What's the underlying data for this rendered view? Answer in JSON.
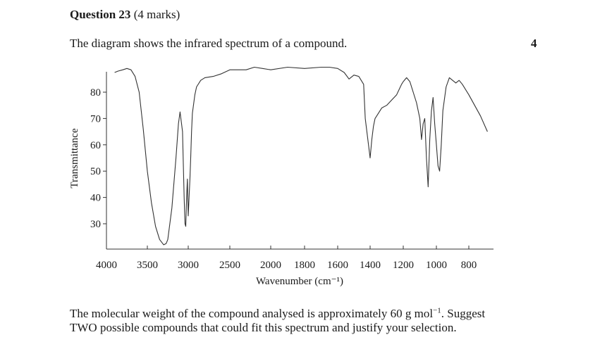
{
  "question": {
    "number_label": "Question 23",
    "marks_label": "(4 marks)",
    "intro_text": "The diagram shows the infrared spectrum of a compound.",
    "margin_marks": "4"
  },
  "chart_data": {
    "type": "line",
    "title": "",
    "xlabel": "Wavenumber (cm⁻¹)",
    "ylabel": "Transmittance",
    "x_ticks": [
      4000,
      3500,
      3000,
      2500,
      2000,
      1800,
      1600,
      1400,
      1200,
      1000,
      800
    ],
    "y_ticks": [
      30,
      40,
      50,
      60,
      70,
      80
    ],
    "xlim": [
      4000,
      700
    ],
    "ylim": [
      22,
      90
    ],
    "grid": false,
    "series": [
      {
        "name": "spectrum",
        "x": [
          3900,
          3860,
          3800,
          3750,
          3700,
          3650,
          3600,
          3550,
          3500,
          3450,
          3400,
          3350,
          3300,
          3270,
          3250,
          3200,
          3150,
          3120,
          3100,
          3070,
          3050,
          3040,
          3030,
          3020,
          3010,
          3000,
          2990,
          2980,
          2970,
          2960,
          2950,
          2920,
          2900,
          2850,
          2800,
          2700,
          2600,
          2500,
          2400,
          2300,
          2200,
          2100,
          2000,
          1900,
          1800,
          1700,
          1650,
          1600,
          1560,
          1530,
          1500,
          1470,
          1440,
          1430,
          1410,
          1400,
          1390,
          1380,
          1370,
          1360,
          1330,
          1300,
          1270,
          1240,
          1210,
          1200,
          1180,
          1160,
          1140,
          1120,
          1100,
          1090,
          1080,
          1070,
          1060,
          1050,
          1040,
          1030,
          1020,
          1010,
          1000,
          990,
          980,
          970,
          960,
          940,
          920,
          900,
          880,
          860,
          840,
          800,
          750,
          720
        ],
        "y": [
          87.5,
          88,
          88.5,
          89,
          88.5,
          86,
          80,
          66,
          50,
          38,
          29,
          24,
          22,
          22.5,
          24,
          36,
          55,
          68,
          72.5,
          65,
          40,
          30,
          29,
          40,
          47,
          33,
          40,
          47,
          55,
          65,
          72,
          79,
          82,
          84.5,
          85.5,
          86,
          87,
          88.5,
          88.5,
          88.5,
          89.5,
          89,
          88.5,
          89.5,
          89,
          89.5,
          89.5,
          89,
          87.5,
          85,
          86.5,
          86,
          83,
          70,
          60,
          55,
          62,
          67,
          70,
          71,
          74,
          75,
          77,
          79,
          83,
          84,
          85.5,
          84,
          80,
          76,
          70,
          62,
          68,
          70,
          55,
          44,
          62,
          73,
          78,
          68,
          60,
          52,
          50,
          60,
          73,
          82,
          85.5,
          84.5,
          83.5,
          84.5,
          83,
          79,
          71,
          65
        ]
      }
    ]
  },
  "footer": {
    "line1_before": "The molecular weight of the compound analysed is approximately 60 g mol",
    "exponent": "−1",
    "line1_after": ". Suggest",
    "line2": "TWO possible compounds that could fit this spectrum and justify your selection."
  }
}
